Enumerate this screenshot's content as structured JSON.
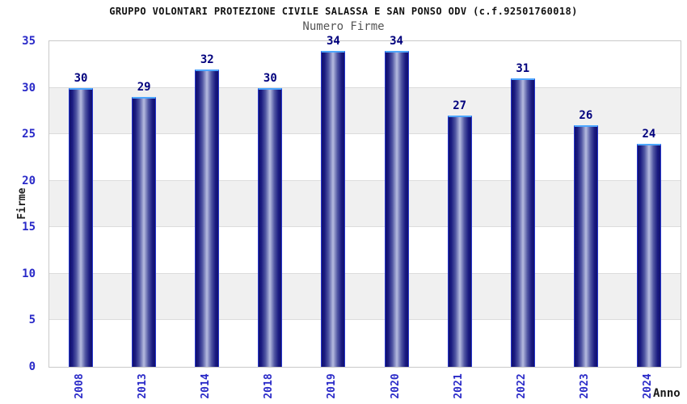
{
  "chart_data": {
    "type": "bar",
    "title": "GRUPPO VOLONTARI PROTEZIONE CIVILE SALASSA E SAN PONSO ODV (c.f.92501760018)",
    "subtitle": "Numero Firme",
    "xlabel": "Anno",
    "ylabel": "Firme",
    "categories": [
      "2008",
      "2013",
      "2014",
      "2018",
      "2019",
      "2020",
      "2021",
      "2022",
      "2023",
      "2024"
    ],
    "values": [
      30,
      29,
      32,
      30,
      34,
      34,
      27,
      31,
      26,
      24
    ],
    "ylim": [
      0,
      35
    ],
    "yticks": [
      0,
      5,
      10,
      15,
      20,
      25,
      30,
      35
    ],
    "grid": true,
    "legend": false,
    "band_step": 5,
    "colors": {
      "bar_dark": "#10106e",
      "bar_light": "#b6bbdf",
      "bar_side_edge": "#2636cc",
      "bar_top_edge": "#4da6ff",
      "axis_tick_label": "#2a2ac8",
      "value_label": "#00007d",
      "band_gray": "#f0f0f0",
      "band_white": "#ffffff",
      "gridline": "#dcdcdc",
      "plot_border": "#c9c9c9",
      "title": "#111111",
      "subtitle": "#555555"
    }
  }
}
